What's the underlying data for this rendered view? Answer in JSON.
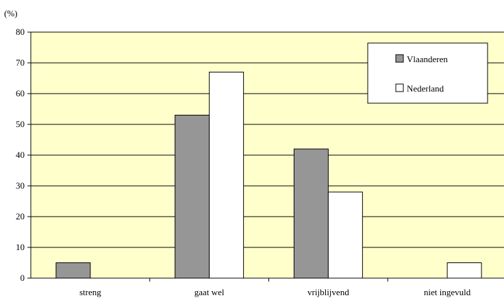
{
  "chart_data": {
    "type": "bar",
    "ylabel": "(%)",
    "categories": [
      "streng",
      "gaat wel",
      "vrijblijvend",
      "niet ingevuld"
    ],
    "series": [
      {
        "name": "Vlaanderen",
        "values": [
          5,
          53,
          42,
          0
        ],
        "color": "#969696"
      },
      {
        "name": "Nederland",
        "values": [
          0,
          67,
          28,
          5
        ],
        "color": "#ffffff"
      }
    ],
    "ylim": [
      0,
      80
    ],
    "yticks": [
      0,
      10,
      20,
      30,
      40,
      50,
      60,
      70,
      80
    ],
    "grid": true,
    "legend_position": "top-right",
    "plot_background": "#ffffcc"
  }
}
